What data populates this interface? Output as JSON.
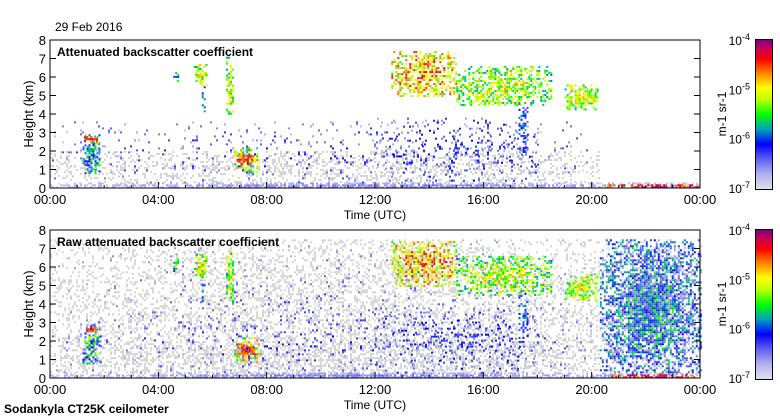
{
  "date_label": "29 Feb 2016",
  "footer": "Sodankyla CT25K ceilometer",
  "colors": {
    "clutter": "#d6d6d6"
  },
  "chart_data": [
    {
      "type": "heatmap",
      "title": "Attenuated backscatter coefficient",
      "xlabel": "Time (UTC)",
      "ylabel": "Height (km)",
      "xlim": [
        0,
        24
      ],
      "ylim": [
        0,
        8
      ],
      "xticks": [
        "00:00",
        "04:00",
        "08:00",
        "12:00",
        "16:00",
        "20:00",
        "00:00"
      ],
      "yticks": [
        "0",
        "1",
        "2",
        "3",
        "4",
        "5",
        "6",
        "7",
        "8"
      ],
      "colorbar": {
        "label": "m-1 sr-1",
        "ticks": [
          "10-7",
          "10-6",
          "10-5",
          "10-4"
        ],
        "range_log10": [
          -7,
          -4
        ]
      },
      "noise": false
    },
    {
      "type": "heatmap",
      "title": "Raw attenuated backscatter coefficient",
      "xlabel": "Time (UTC)",
      "ylabel": "Height (km)",
      "xlim": [
        0,
        24
      ],
      "ylim": [
        0,
        8
      ],
      "xticks": [
        "00:00",
        "04:00",
        "08:00",
        "12:00",
        "16:00",
        "20:00",
        "00:00"
      ],
      "yticks": [
        "0",
        "1",
        "2",
        "3",
        "4",
        "5",
        "6",
        "7",
        "8"
      ],
      "colorbar": {
        "label": "m-1 sr-1",
        "ticks": [
          "10-7",
          "10-6",
          "10-5",
          "10-4"
        ],
        "range_log10": [
          -7,
          -4
        ]
      },
      "noise": true
    }
  ],
  "features": [
    {
      "name": "surface-layer",
      "t": [
        0,
        24
      ],
      "h": [
        0,
        0.3
      ],
      "logv": -6.8,
      "spread": 0.3,
      "density": 0.9
    },
    {
      "name": "boundary-clutter",
      "t": [
        0,
        20.3
      ],
      "h": [
        0.3,
        2.0
      ],
      "logv": -7.5,
      "spread": 0.1,
      "density": 0.35
    },
    {
      "name": "low-cloud-0130",
      "t": [
        1.2,
        1.8
      ],
      "h": [
        0.8,
        2.9
      ],
      "logv": -5.9,
      "spread": 1.2,
      "density": 0.75
    },
    {
      "name": "low-cloud-0130-top",
      "t": [
        1.25,
        1.7
      ],
      "h": [
        2.55,
        2.8
      ],
      "logv": -4.6,
      "spread": 0.6,
      "density": 0.9
    },
    {
      "name": "high-cloud-0445",
      "t": [
        4.55,
        4.7
      ],
      "h": [
        5.8,
        6.6
      ],
      "logv": -5.8,
      "spread": 0.8,
      "density": 0.6
    },
    {
      "name": "high-cloud-0530",
      "t": [
        5.3,
        5.75
      ],
      "h": [
        5.5,
        6.7
      ],
      "logv": -5.3,
      "spread": 1.0,
      "density": 0.8
    },
    {
      "name": "fall-streak-0540",
      "t": [
        5.6,
        5.7
      ],
      "h": [
        4.1,
        5.5
      ],
      "logv": -6.0,
      "spread": 0.6,
      "density": 0.5
    },
    {
      "name": "high-cloud-0630",
      "t": [
        6.5,
        6.75
      ],
      "h": [
        4.0,
        7.1
      ],
      "logv": -5.4,
      "spread": 1.0,
      "density": 0.7
    },
    {
      "name": "low-cloud-0700",
      "t": [
        6.8,
        7.7
      ],
      "h": [
        0.8,
        2.2
      ],
      "logv": -5.2,
      "spread": 1.3,
      "density": 0.8
    },
    {
      "name": "low-cloud-0700-core",
      "t": [
        6.9,
        7.5
      ],
      "h": [
        1.3,
        1.8
      ],
      "logv": -4.6,
      "spread": 0.5,
      "density": 0.9
    },
    {
      "name": "low-echoes-day",
      "t": [
        0,
        20
      ],
      "h": [
        0.3,
        3.6
      ],
      "logv": -6.6,
      "spread": 0.6,
      "density": 0.08
    },
    {
      "name": "midlevel-echoes",
      "t": [
        12,
        18
      ],
      "h": [
        0.3,
        3.8
      ],
      "logv": -6.5,
      "spread": 0.7,
      "density": 0.18
    },
    {
      "name": "high-cloud-1300",
      "t": [
        12.6,
        15.0
      ],
      "h": [
        5.0,
        7.4
      ],
      "logv": -5.0,
      "spread": 1.1,
      "density": 0.7
    },
    {
      "name": "high-cloud-1600",
      "t": [
        15.0,
        18.5
      ],
      "h": [
        4.5,
        6.6
      ],
      "logv": -5.4,
      "spread": 1.0,
      "density": 0.7
    },
    {
      "name": "fall-streak-1730",
      "t": [
        17.3,
        17.6
      ],
      "h": [
        2.0,
        4.6
      ],
      "logv": -6.2,
      "spread": 0.7,
      "density": 0.5
    },
    {
      "name": "high-cloud-1930",
      "t": [
        19.0,
        20.2
      ],
      "h": [
        4.3,
        5.6
      ],
      "logv": -5.3,
      "spread": 0.9,
      "density": 0.8
    },
    {
      "name": "surface-precip-2100",
      "t": [
        20.5,
        24
      ],
      "h": [
        0,
        0.2
      ],
      "logv": -4.5,
      "spread": 0.8,
      "density": 0.9
    }
  ]
}
